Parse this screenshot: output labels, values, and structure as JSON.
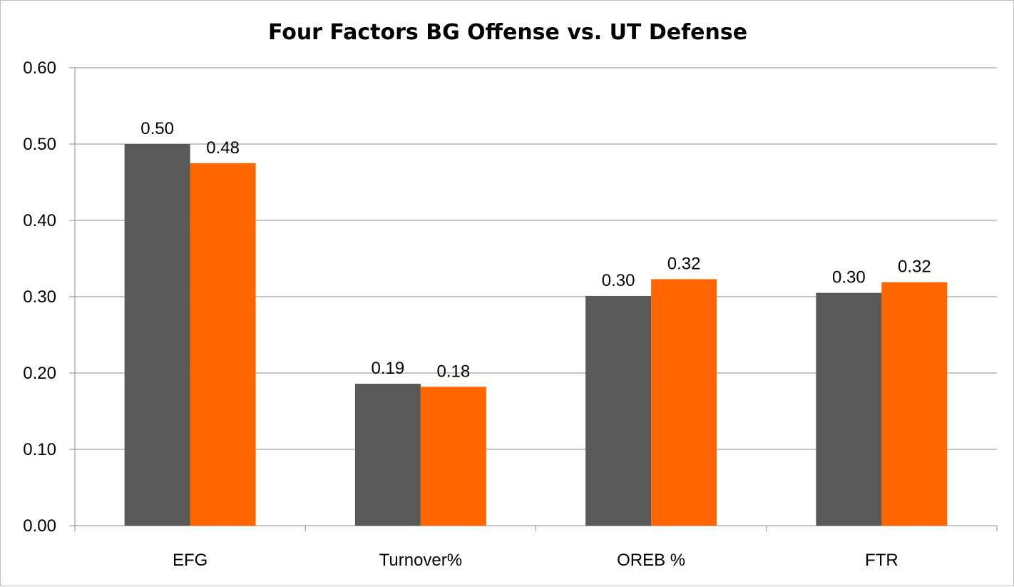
{
  "chart_data": {
    "type": "bar",
    "title": "Four Factors BG Offense vs. UT Defense",
    "categories": [
      "EFG",
      "Turnover%",
      "OREB %",
      "FTR"
    ],
    "series": [
      {
        "color": "#595959",
        "values": [
          0.5,
          0.186,
          0.301,
          0.305
        ],
        "labels": [
          "0.50",
          "0.19",
          "0.30",
          "0.30"
        ]
      },
      {
        "color": "#ff6600",
        "values": [
          0.475,
          0.182,
          0.323,
          0.319
        ],
        "labels": [
          "0.48",
          "0.18",
          "0.32",
          "0.32"
        ]
      }
    ],
    "ylim": [
      0,
      0.6
    ],
    "yticks": [
      0,
      0.1,
      0.2,
      0.3,
      0.4,
      0.5,
      0.6
    ],
    "ytick_labels": [
      "0.00",
      "0.10",
      "0.20",
      "0.30",
      "0.40",
      "0.50",
      "0.60"
    ],
    "grid": true,
    "gridline_color": "#8c8c8c",
    "legend": "none"
  }
}
